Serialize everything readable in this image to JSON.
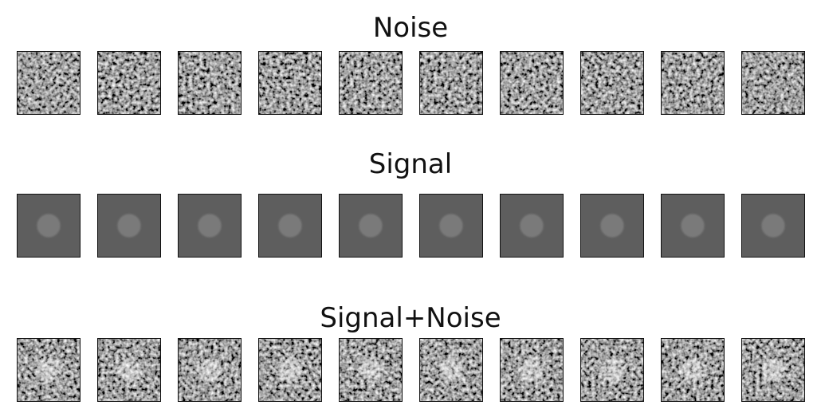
{
  "rows": [
    {
      "key": "noise",
      "title": "Noise",
      "kind": "noise",
      "count": 10
    },
    {
      "key": "signal",
      "title": "Signal",
      "kind": "signal",
      "count": 10
    },
    {
      "key": "both",
      "title": "Signal+Noise",
      "kind": "both",
      "count": 10
    }
  ],
  "colors": {
    "background_gray": "#5e5e5e",
    "signal_blob": "#7a7a7a",
    "border": "#111111"
  }
}
